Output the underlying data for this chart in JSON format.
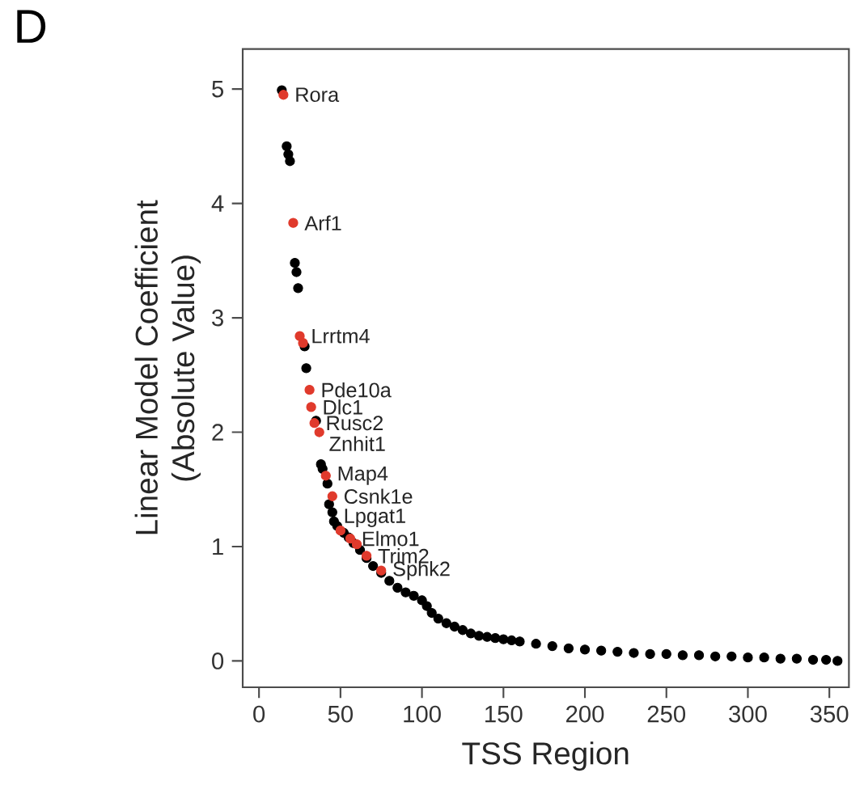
{
  "chart_data": {
    "type": "scatter",
    "xlabel": "TSS Region",
    "ylabel": "Linear Model Coefficient\n(Absolute Value)",
    "xlim": [
      -10,
      362
    ],
    "ylim": [
      -0.23,
      5.35
    ],
    "xticks": [
      0,
      50,
      100,
      150,
      200,
      250,
      300,
      350
    ],
    "yticks": [
      0,
      1,
      2,
      3,
      4,
      5
    ],
    "grid": false,
    "series": [
      {
        "color": "#000000",
        "x": [
          14,
          17,
          18,
          19,
          22,
          23,
          24,
          28,
          29,
          35,
          38,
          39,
          42,
          43,
          45,
          46,
          48,
          52,
          55,
          58,
          62,
          66,
          70,
          75,
          80,
          85,
          90,
          95,
          100,
          103,
          106,
          110,
          115,
          120,
          125,
          130,
          135,
          140,
          145,
          150,
          155,
          160,
          170,
          180,
          190,
          200,
          210,
          220,
          230,
          240,
          250,
          260,
          270,
          280,
          290,
          300,
          310,
          320,
          330,
          340,
          348,
          355
        ],
        "values": [
          4.99,
          4.5,
          4.43,
          4.37,
          3.48,
          3.4,
          3.26,
          2.75,
          2.56,
          2.1,
          1.72,
          1.68,
          1.55,
          1.37,
          1.3,
          1.22,
          1.18,
          1.12,
          1.08,
          1.03,
          0.97,
          0.9,
          0.83,
          0.77,
          0.7,
          0.64,
          0.6,
          0.57,
          0.53,
          0.48,
          0.42,
          0.37,
          0.33,
          0.3,
          0.27,
          0.24,
          0.22,
          0.21,
          0.2,
          0.19,
          0.18,
          0.17,
          0.15,
          0.13,
          0.11,
          0.1,
          0.09,
          0.08,
          0.07,
          0.06,
          0.06,
          0.05,
          0.05,
          0.04,
          0.04,
          0.03,
          0.03,
          0.02,
          0.02,
          0.01,
          0.01,
          0.0
        ]
      },
      {
        "color": "#e03a2c",
        "x": [
          15,
          21,
          25,
          27,
          31,
          32,
          34,
          37,
          41,
          45,
          50,
          56,
          60,
          66,
          75
        ],
        "values": [
          4.95,
          3.83,
          2.84,
          2.78,
          2.37,
          2.22,
          2.08,
          2.0,
          1.62,
          1.44,
          1.14,
          1.07,
          1.02,
          0.92,
          0.79
        ]
      }
    ],
    "annotations": [
      "D",
      {
        "text": "Rora",
        "x": 15,
        "y": 4.95
      },
      {
        "text": "Arf1",
        "x": 21,
        "y": 3.83
      },
      {
        "text": "Lrrtm4",
        "x": 25,
        "y": 2.84
      },
      {
        "text": "Pde10a",
        "x": 31,
        "y": 2.37
      },
      {
        "text": "Dlc1",
        "x": 32,
        "y": 2.22
      },
      {
        "text": "Rusc2",
        "x": 34,
        "y": 2.08
      },
      {
        "text": "Znhit1",
        "x": 36,
        "y": 1.9
      },
      {
        "text": "Map4",
        "x": 41,
        "y": 1.62
      },
      {
        "text": "Csnk1e",
        "x": 45,
        "y": 1.44
      },
      {
        "text": "Lpgat1",
        "x": 45,
        "y": 1.25
      },
      {
        "text": "Elmo1",
        "x": 56,
        "y": 1.07
      },
      {
        "text": "Trim2",
        "x": 66,
        "y": 0.92
      },
      {
        "text": "Sphk2",
        "x": 75,
        "y": 0.79
      }
    ]
  }
}
